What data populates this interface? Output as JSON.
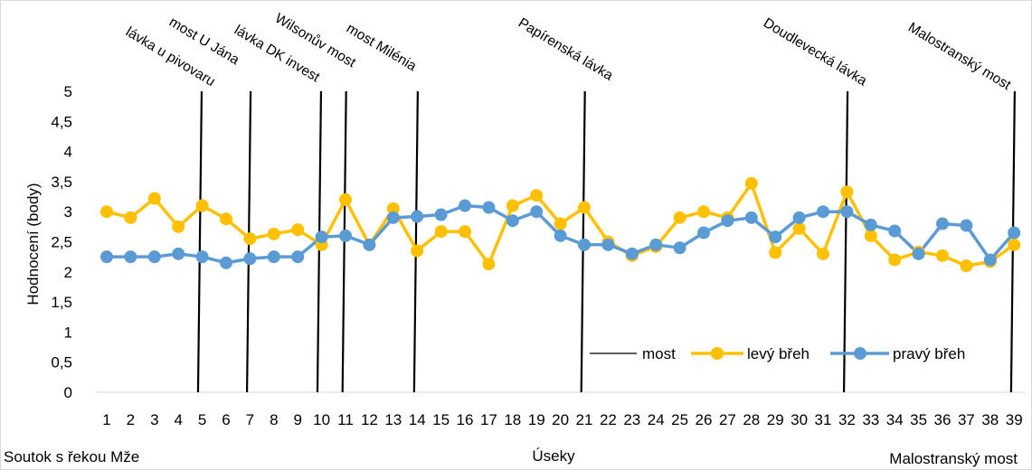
{
  "chart_data": {
    "type": "line",
    "ylabel": "Hodnocení (body)",
    "xlabel": "Úseky",
    "ylim": [
      0,
      5
    ],
    "y_ticks": [
      "0",
      "0,5",
      "1",
      "1,5",
      "2",
      "2,5",
      "3",
      "3,5",
      "4",
      "4,5",
      "5"
    ],
    "categories": [
      "1",
      "2",
      "3",
      "4",
      "5",
      "6",
      "7",
      "8",
      "9",
      "10",
      "11",
      "12",
      "13",
      "14",
      "15",
      "16",
      "17",
      "18",
      "19",
      "20",
      "21",
      "22",
      "23",
      "24",
      "25",
      "26",
      "27",
      "28",
      "29",
      "30",
      "31",
      "32",
      "33",
      "34",
      "35",
      "36",
      "37",
      "38",
      "39"
    ],
    "series": [
      {
        "name": "levý břeh",
        "color": "#FFC000",
        "values": [
          3.0,
          2.9,
          3.22,
          2.75,
          3.1,
          2.88,
          2.55,
          2.63,
          2.7,
          2.45,
          3.2,
          2.45,
          3.05,
          2.35,
          2.67,
          2.67,
          2.13,
          3.1,
          3.27,
          2.8,
          3.07,
          2.5,
          2.27,
          2.42,
          2.9,
          3.0,
          2.9,
          3.47,
          2.32,
          2.72,
          2.3,
          3.33,
          2.6,
          2.2,
          2.33,
          2.27,
          2.1,
          2.17,
          2.45
        ]
      },
      {
        "name": "pravý břeh",
        "color": "#5B9BD5",
        "values": [
          2.25,
          2.25,
          2.25,
          2.3,
          2.25,
          2.15,
          2.22,
          2.25,
          2.25,
          2.58,
          2.6,
          2.45,
          2.9,
          2.92,
          2.95,
          3.1,
          3.07,
          2.85,
          3.0,
          2.6,
          2.45,
          2.45,
          2.3,
          2.45,
          2.4,
          2.65,
          2.85,
          2.9,
          2.58,
          2.9,
          3.0,
          3.0,
          2.78,
          2.68,
          2.3,
          2.8,
          2.77,
          2.2,
          2.65
        ]
      }
    ],
    "bridge_series_name": "most",
    "bridges": [
      {
        "label": "lávka u pivovaru",
        "x": 4.9
      },
      {
        "label": "most U Jána",
        "x": 4.9
      },
      {
        "label": "lávka DK invest",
        "x": 6.95
      },
      {
        "label": "Wilsonův most",
        "x": 9.9
      },
      {
        "label": "most Milénia",
        "x": 10.95
      },
      {
        "label": "Papírenská lávka",
        "x": 13.95
      },
      {
        "label": "Papírenská lávka",
        "x": 20.95
      },
      {
        "label": "Doudlevecká lávka",
        "x": 31.95
      },
      {
        "label": "Malostranský most",
        "x": 38.95
      }
    ],
    "bridge_labels": [
      {
        "label": "lávka u pivovaru"
      },
      {
        "label": "most U Jána"
      },
      {
        "label": "lávka DK invest"
      },
      {
        "label": "Wilsonův most"
      },
      {
        "label": "most Milénia"
      },
      {
        "label": "Papírenská lávka"
      },
      {
        "label": "Doudlevecká lávka"
      },
      {
        "label": "Malostranský most"
      }
    ],
    "bottom_left_note": "Soutok s řekou Mže",
    "bottom_right_note": "Malostranský most",
    "legend_position": "bottom-right",
    "grid": false
  }
}
